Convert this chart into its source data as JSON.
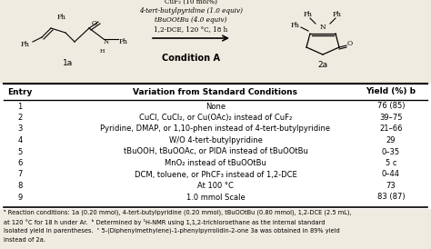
{
  "condition_lines": [
    "CuF₂ (10 mol%)",
    "4-tert-butylpyridine (1.0 equiv)",
    "tBuOOtBu (4.0 equiv)",
    "1,2-DCE, 120 °C, 18 h"
  ],
  "condition_label": "Condition A",
  "reactant_label": "1a",
  "product_label": "2a",
  "table_header": [
    "Entry",
    "Variation from Standard Conditions",
    "Yield (%) b"
  ],
  "rows": [
    [
      "1",
      "None",
      "76 (85)"
    ],
    [
      "2",
      "CuCl, CuCl₂, or Cu(OAc)₂ instead of CuF₂",
      "39–75"
    ],
    [
      "3",
      "Pyridine, DMAP, or 1,10-phen instead of 4-tert-butylpyridine",
      "21–66"
    ],
    [
      "4",
      "W/O 4-tert-butylpyridine",
      "29"
    ],
    [
      "5",
      "tBuOOH, tBuOOAc, or PIDA instead of tBuOOtBu",
      "0–35"
    ],
    [
      "6",
      "MnO₂ instead of tBuOOtBu",
      "5 c"
    ],
    [
      "7",
      "DCM, toluene, or PhCF₃ instead of 1,2-DCE",
      "0–44"
    ],
    [
      "8",
      "At 100 °C",
      "73"
    ],
    [
      "9",
      "1.0 mmol Scale",
      "83 (87)"
    ]
  ],
  "footnotes": [
    "ᵃ Reaction conditions: 1a (0.20 mmol), 4-tert-butylpyridine (0.20 mmol), tBuOOtBu (0.80 mmol), 1,2-DCE (2.5 mL),",
    "at 120 °C for 18 h under Ar.  ᵇ Determined by ¹H-NMR using 1,1,2-trichloroethane as the internal standard",
    "Isolated yield in parentheses.  ᶜ 5-(Diphenylmethylene)-1-phenylpyrrolidin-2-one 3a was obtained in 89% yield",
    "instead of 2a."
  ],
  "bg_color": "#f0ebe0",
  "table_bg": "#ffffff",
  "header_fontsize": 6.5,
  "row_fontsize": 6.0,
  "footnote_fontsize": 4.8,
  "scheme_fontsize": 5.5
}
